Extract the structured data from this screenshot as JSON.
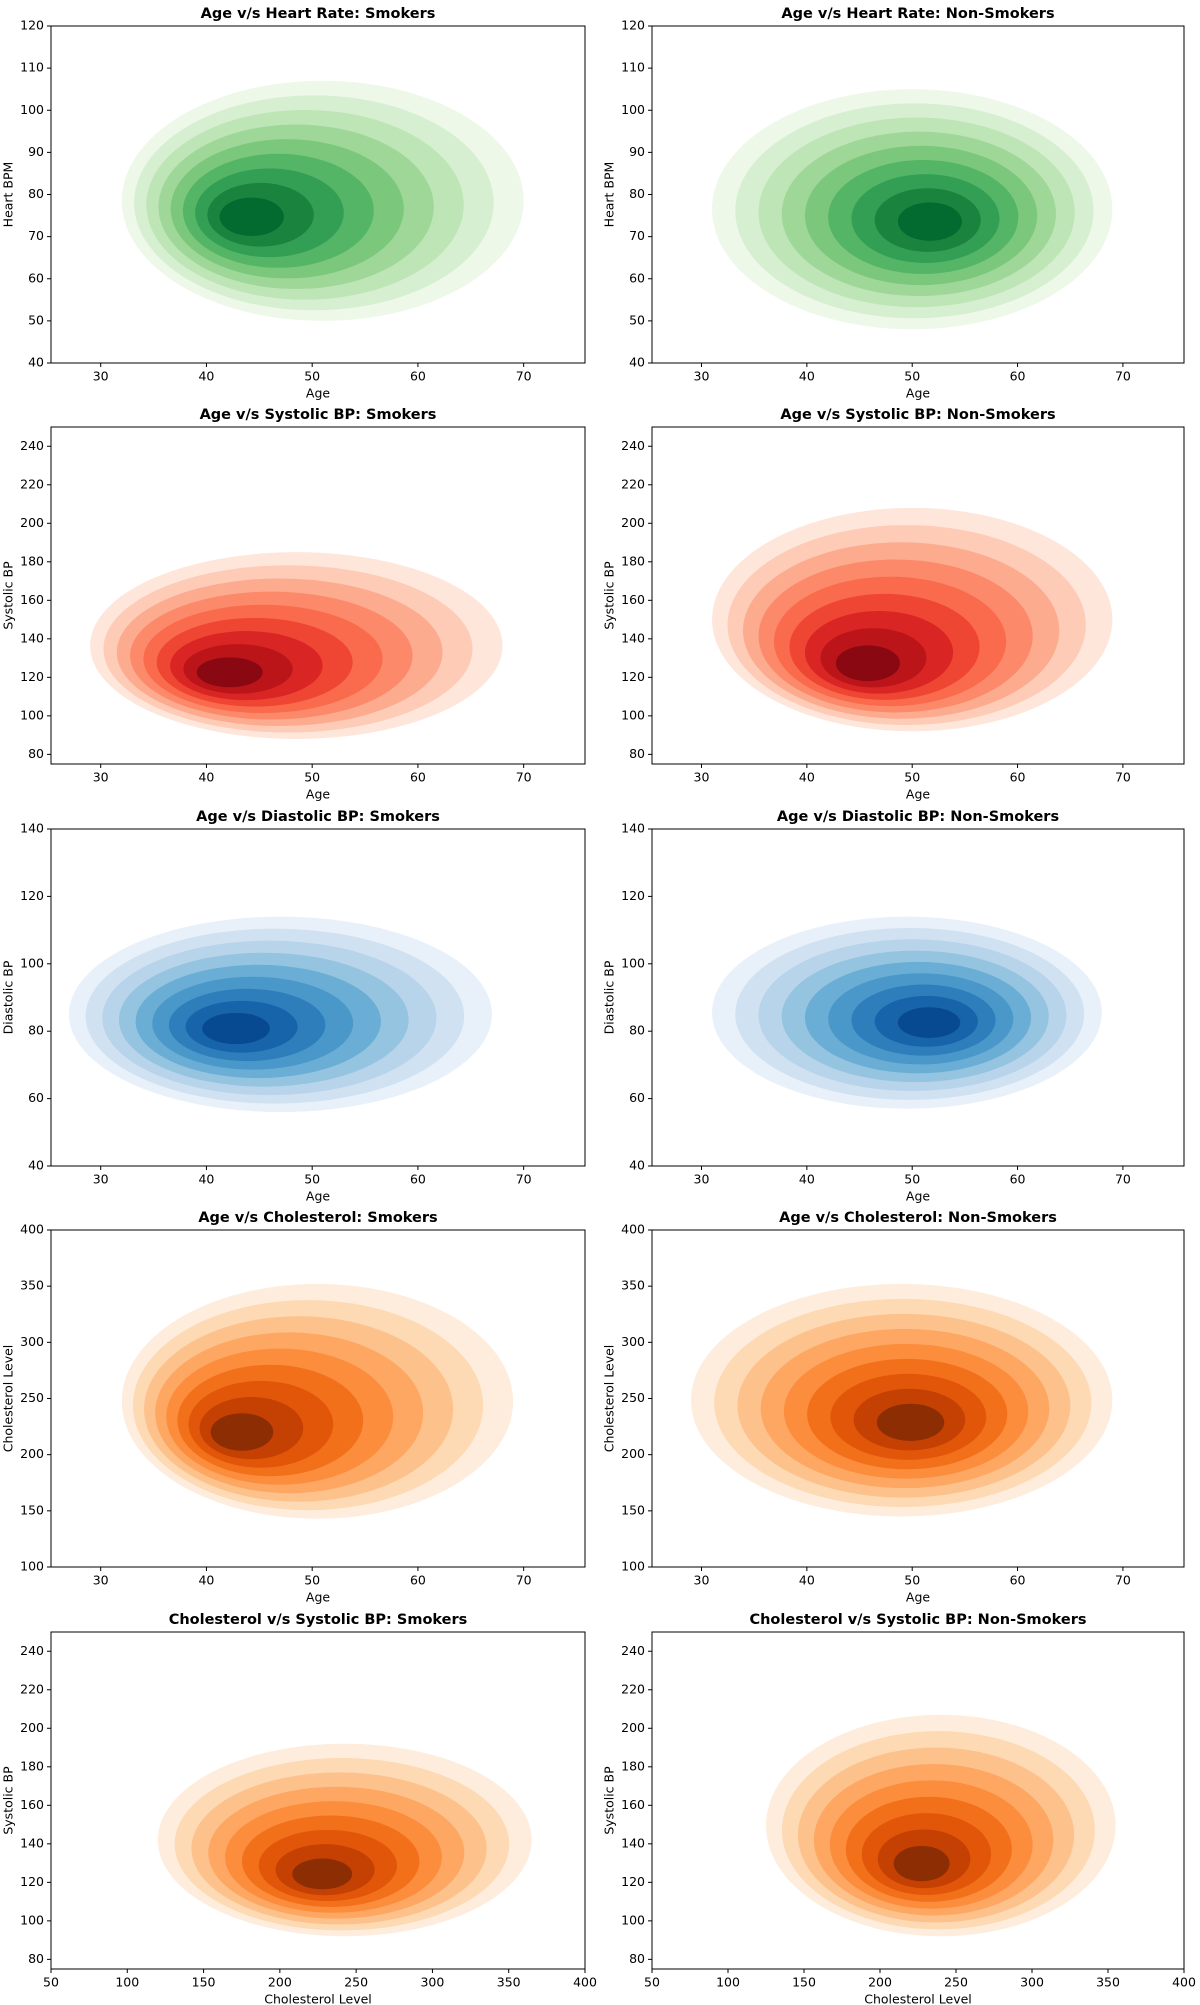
{
  "chart_data": [
    {
      "type": "kde",
      "title": "Age v/s Heart Rate: Smokers",
      "xlabel": "Age",
      "ylabel": "Heart BPM",
      "xlim": [
        25.3,
        75.8
      ],
      "ylim": [
        40,
        120
      ],
      "xticks": [
        30,
        40,
        50,
        60,
        70
      ],
      "yticks": [
        40,
        50,
        60,
        70,
        80,
        90,
        100,
        110,
        120
      ],
      "density_x_range": [
        32,
        70
      ],
      "density_y_range": [
        50,
        107
      ],
      "peak": [
        43,
        74
      ],
      "colors": [
        "#edf8e9",
        "#d6efd0",
        "#bde5b6",
        "#9ed798",
        "#7bc77c",
        "#55b567",
        "#339f55",
        "#1a843f",
        "#036b30"
      ]
    },
    {
      "type": "kde",
      "title": "Age v/s Heart Rate: Non-Smokers",
      "xlabel": "Age",
      "ylabel": "Heart BPM",
      "xlim": [
        25.3,
        75.8
      ],
      "ylim": [
        40,
        120
      ],
      "xticks": [
        30,
        40,
        50,
        60,
        70
      ],
      "yticks": [
        40,
        50,
        60,
        70,
        80,
        90,
        100,
        110,
        120
      ],
      "density_x_range": [
        31,
        69
      ],
      "density_y_range": [
        48,
        105
      ],
      "peak": [
        52,
        73
      ],
      "colors": [
        "#edf8e9",
        "#d6efd0",
        "#bde5b6",
        "#9ed798",
        "#7bc77c",
        "#55b567",
        "#339f55",
        "#1a843f",
        "#036b30"
      ]
    },
    {
      "type": "kde",
      "title": "Age v/s Systolic BP: Smokers",
      "xlabel": "Age",
      "ylabel": "Systolic BP",
      "xlim": [
        25.3,
        75.8
      ],
      "ylim": [
        75,
        250
      ],
      "xticks": [
        30,
        40,
        50,
        60,
        70
      ],
      "yticks": [
        80,
        100,
        120,
        140,
        160,
        180,
        200,
        220,
        240
      ],
      "density_x_range": [
        29,
        68
      ],
      "density_y_range": [
        88,
        185
      ],
      "peak": [
        41,
        120
      ],
      "colors": [
        "#fee6da",
        "#fdcbb6",
        "#fcab8f",
        "#fc8a6a",
        "#f96b4c",
        "#ef4533",
        "#d92523",
        "#bb151a",
        "#8a0812"
      ]
    },
    {
      "type": "kde",
      "title": "Age v/s Systolic BP: Non-Smokers",
      "xlabel": "Age",
      "ylabel": "Systolic BP",
      "xlim": [
        25.3,
        75.8
      ],
      "ylim": [
        75,
        250
      ],
      "xticks": [
        30,
        40,
        50,
        60,
        70
      ],
      "yticks": [
        80,
        100,
        120,
        140,
        160,
        180,
        200,
        220,
        240
      ],
      "density_x_range": [
        31,
        69
      ],
      "density_y_range": [
        92,
        208
      ],
      "peak": [
        45,
        123
      ],
      "colors": [
        "#fee6da",
        "#fdcbb6",
        "#fcab8f",
        "#fc8a6a",
        "#f96b4c",
        "#ef4533",
        "#d92523",
        "#bb151a",
        "#8a0812"
      ]
    },
    {
      "type": "kde",
      "title": "Age v/s Diastolic BP: Smokers",
      "xlabel": "Age",
      "ylabel": "Diastolic BP",
      "xlim": [
        25.3,
        75.8
      ],
      "ylim": [
        40,
        140
      ],
      "xticks": [
        30,
        40,
        50,
        60,
        70
      ],
      "yticks": [
        40,
        60,
        80,
        100,
        120,
        140
      ],
      "density_x_range": [
        27,
        67
      ],
      "density_y_range": [
        56,
        114
      ],
      "peak": [
        42,
        80
      ],
      "colors": [
        "#e8f1fa",
        "#d0e1f2",
        "#b7d4ea",
        "#94c4df",
        "#6aaed6",
        "#4a98c9",
        "#2e7ebc",
        "#1764ab",
        "#084a91"
      ]
    },
    {
      "type": "kde",
      "title": "Age v/s Diastolic BP: Non-Smokers",
      "xlabel": "Age",
      "ylabel": "Diastolic BP",
      "xlim": [
        25.3,
        75.8
      ],
      "ylim": [
        40,
        140
      ],
      "xticks": [
        30,
        40,
        50,
        60,
        70
      ],
      "yticks": [
        40,
        60,
        80,
        100,
        120,
        140
      ],
      "density_x_range": [
        31,
        68
      ],
      "density_y_range": [
        57,
        114
      ],
      "peak": [
        52,
        82
      ],
      "colors": [
        "#e8f1fa",
        "#d0e1f2",
        "#b7d4ea",
        "#94c4df",
        "#6aaed6",
        "#4a98c9",
        "#2e7ebc",
        "#1764ab",
        "#084a91"
      ]
    },
    {
      "type": "kde",
      "title": "Age v/s Cholesterol: Smokers",
      "xlabel": "Age",
      "ylabel": "Cholesterol Level",
      "xlim": [
        25.3,
        75.8
      ],
      "ylim": [
        100,
        400
      ],
      "xticks": [
        30,
        40,
        50,
        60,
        70
      ],
      "yticks": [
        100,
        150,
        200,
        250,
        300,
        350,
        400
      ],
      "density_x_range": [
        32,
        69
      ],
      "density_y_range": [
        143,
        352
      ],
      "peak": [
        42,
        215
      ],
      "colors": [
        "#feeddc",
        "#fdd9b4",
        "#fdc28c",
        "#fda762",
        "#fb8d3d",
        "#f3701b",
        "#e25609",
        "#c44103",
        "#8c2d04"
      ]
    },
    {
      "type": "kde",
      "title": "Age v/s Cholesterol: Non-Smokers",
      "xlabel": "Age",
      "ylabel": "Cholesterol Level",
      "xlim": [
        25.3,
        75.8
      ],
      "ylim": [
        100,
        400
      ],
      "xticks": [
        30,
        40,
        50,
        60,
        70
      ],
      "yticks": [
        100,
        150,
        200,
        250,
        300,
        350,
        400
      ],
      "density_x_range": [
        29,
        69
      ],
      "density_y_range": [
        145,
        352
      ],
      "peak": [
        50,
        225
      ],
      "colors": [
        "#feeddc",
        "#fdd9b4",
        "#fdc28c",
        "#fda762",
        "#fb8d3d",
        "#f3701b",
        "#e25609",
        "#c44103",
        "#8c2d04"
      ]
    },
    {
      "type": "kde",
      "title": "Cholesterol v/s Systolic BP: Smokers",
      "xlabel": "Cholesterol Level",
      "ylabel": "Systolic BP",
      "xlim": [
        50,
        400
      ],
      "ylim": [
        75,
        250
      ],
      "xticks": [
        50,
        100,
        150,
        200,
        250,
        300,
        350,
        400
      ],
      "yticks": [
        80,
        100,
        120,
        140,
        160,
        180,
        200,
        220,
        240
      ],
      "density_x_range": [
        120,
        365
      ],
      "density_y_range": [
        92,
        192
      ],
      "peak": [
        225,
        121
      ],
      "colors": [
        "#feeddc",
        "#fdd9b4",
        "#fdc28c",
        "#fda762",
        "#fb8d3d",
        "#f3701b",
        "#e25609",
        "#c44103",
        "#8c2d04"
      ]
    },
    {
      "type": "kde",
      "title": "Cholesterol v/s Systolic BP: Non-Smokers",
      "xlabel": "Cholesterol Level",
      "ylabel": "Systolic BP",
      "xlim": [
        50,
        400
      ],
      "ylim": [
        75,
        250
      ],
      "xticks": [
        50,
        100,
        150,
        200,
        250,
        300,
        350,
        400
      ],
      "yticks": [
        80,
        100,
        120,
        140,
        160,
        180,
        200,
        220,
        240
      ],
      "density_x_range": [
        125,
        355
      ],
      "density_y_range": [
        92,
        207
      ],
      "peak": [
        225,
        126
      ],
      "colors": [
        "#feeddc",
        "#fdd9b4",
        "#fdc28c",
        "#fda762",
        "#fb8d3d",
        "#f3701b",
        "#e25609",
        "#c44103",
        "#8c2d04"
      ]
    }
  ]
}
